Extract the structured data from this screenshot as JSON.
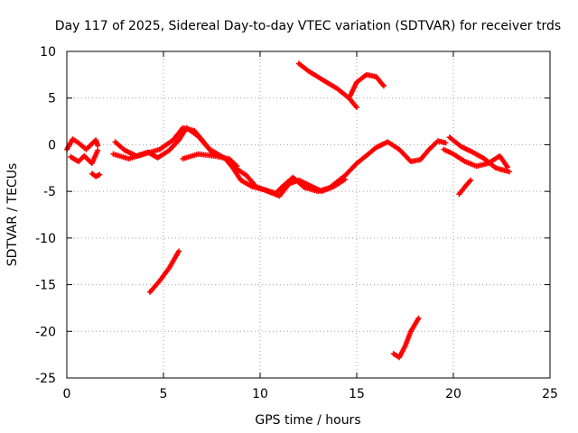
{
  "chart_data": {
    "type": "scatter",
    "title": "Day 117 of 2025, Sidereal Day-to-day VTEC variation (SDTVAR) for receiver trds",
    "xlabel": "GPS time / hours",
    "ylabel": "SDTVAR / TECUs",
    "xlim": [
      0,
      25
    ],
    "ylim": [
      -25,
      10
    ],
    "xticks": [
      0,
      5,
      10,
      15,
      20,
      25
    ],
    "yticks": [
      -25,
      -20,
      -15,
      -10,
      -5,
      0,
      5,
      10
    ],
    "grid": true,
    "marker": "+",
    "color": "#ff0000",
    "series": [
      {
        "name": "track-main-upper",
        "x": [
          0.0,
          0.3,
          0.6,
          1.0,
          1.5,
          1.6
        ],
        "y": [
          -0.5,
          0.6,
          0.2,
          -0.5,
          0.5,
          -0.1
        ]
      },
      {
        "name": "track-main-lower",
        "x": [
          0.2,
          0.6,
          0.9,
          1.3,
          1.6
        ],
        "y": [
          -1.3,
          -1.8,
          -1.2,
          -2.0,
          -0.6
        ]
      },
      {
        "name": "track-small-1",
        "x": [
          1.3,
          1.5,
          1.7
        ],
        "y": [
          -3.1,
          -3.4,
          -3.2
        ]
      },
      {
        "name": "track-2",
        "x": [
          2.4,
          3.2,
          4.0,
          4.8,
          5.5,
          6.0,
          6.6,
          7.4,
          8.2,
          8.6,
          9.0,
          9.6,
          10.2,
          10.8,
          11.2,
          11.7,
          12.3,
          13.0,
          13.6,
          14.4,
          15.0,
          15.6,
          16.0,
          16.6,
          17.2,
          17.8,
          18.3,
          18.7,
          19.2,
          19.6
        ],
        "y": [
          -1.0,
          -1.5,
          -1.0,
          -0.5,
          0.5,
          1.8,
          1.5,
          -0.5,
          -1.5,
          -2.5,
          -3.8,
          -4.5,
          -4.8,
          -5.2,
          -4.4,
          -3.5,
          -4.6,
          -5.0,
          -4.6,
          -3.3,
          -2.0,
          -1.0,
          -0.3,
          0.3,
          -0.5,
          -1.8,
          -1.6,
          -0.6,
          0.4,
          0.2
        ]
      },
      {
        "name": "track-3",
        "x": [
          2.5,
          3.0,
          3.6,
          4.2,
          4.7,
          5.3,
          5.8,
          6.2,
          6.8,
          7.5,
          8.2,
          8.8,
          9.3,
          9.8,
          10.4,
          11.0,
          11.5,
          12.0,
          12.6,
          13.2,
          13.8,
          14.4
        ],
        "y": [
          0.3,
          -0.6,
          -1.2,
          -0.8,
          -1.4,
          -0.6,
          0.5,
          1.8,
          0.9,
          -0.8,
          -1.5,
          -2.6,
          -3.3,
          -4.5,
          -5.0,
          -5.5,
          -4.2,
          -3.8,
          -4.4,
          -5.0,
          -4.5,
          -3.7
        ]
      },
      {
        "name": "track-4",
        "x": [
          6.0,
          6.8,
          7.6,
          8.4,
          8.8
        ],
        "y": [
          -1.5,
          -1.0,
          -1.2,
          -1.5,
          -2.3
        ]
      },
      {
        "name": "track-5",
        "x": [
          19.5,
          20.0,
          20.6,
          21.2,
          21.8,
          22.4,
          22.8
        ],
        "y": [
          -0.5,
          -1.0,
          -1.8,
          -2.3,
          -2.0,
          -1.2,
          -2.4
        ]
      },
      {
        "name": "track-6",
        "x": [
          19.8,
          20.4,
          21.0,
          21.6,
          22.2,
          22.9
        ],
        "y": [
          0.8,
          -0.2,
          -0.8,
          -1.5,
          -2.5,
          -2.9
        ]
      },
      {
        "name": "track-7",
        "x": [
          20.3,
          20.6,
          20.9
        ],
        "y": [
          -5.3,
          -4.5,
          -3.8
        ]
      },
      {
        "name": "track-8",
        "x": [
          12.0,
          12.5,
          13.2,
          14.0,
          14.6,
          15.0
        ],
        "y": [
          8.7,
          7.9,
          7.0,
          6.0,
          5.0,
          4.0
        ]
      },
      {
        "name": "track-9",
        "x": [
          14.6,
          15.0,
          15.5,
          16.0,
          16.4
        ],
        "y": [
          5.0,
          6.7,
          7.5,
          7.3,
          6.3
        ]
      },
      {
        "name": "track-10",
        "x": [
          4.3,
          4.8,
          5.3,
          5.8
        ],
        "y": [
          -15.8,
          -14.6,
          -13.2,
          -11.4
        ]
      },
      {
        "name": "track-11",
        "x": [
          16.9,
          17.2,
          17.5,
          17.8,
          18.2
        ],
        "y": [
          -22.4,
          -22.8,
          -21.6,
          -20.0,
          -18.6
        ]
      }
    ]
  }
}
